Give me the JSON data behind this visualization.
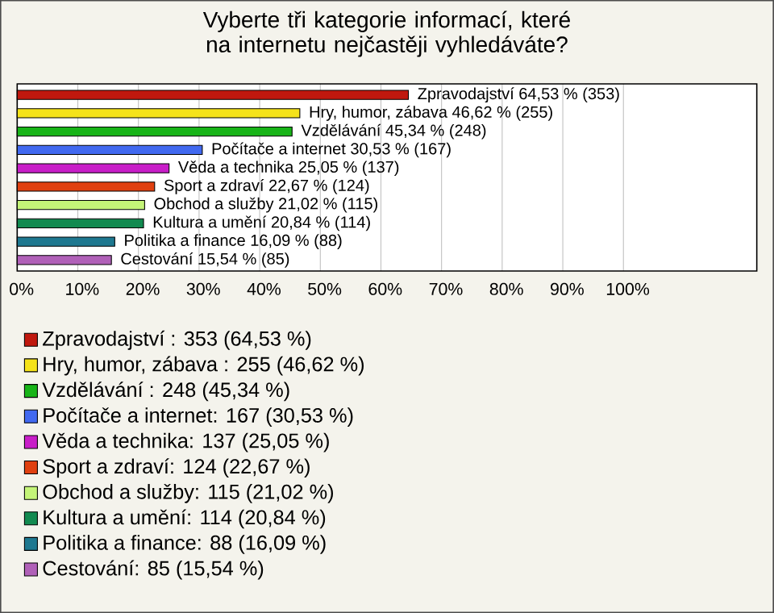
{
  "chart_data": {
    "type": "bar",
    "orientation": "horizontal",
    "title": "Vyberte tři kategorie informací, které na internetu nejčastěji vyhledáváte?",
    "categories": [
      null,
      null,
      null,
      null,
      null,
      null,
      null,
      null,
      null,
      null
    ],
    "series": [
      {
        "name": "Zpravodajství : 353 (64,53 %)",
        "color": "#c0180e",
        "values": [
          64.53,
          null,
          null,
          null,
          null,
          null,
          null,
          null,
          null,
          null
        ],
        "value_labels": [
          "Zpravodajství  64,53 % (353)",
          null,
          null,
          null,
          null,
          null,
          null,
          null,
          null,
          null
        ]
      },
      {
        "name": "Hry, humor, zábava : 255 (46,62 %)",
        "color": "#f5e31a",
        "values": [
          null,
          46.62,
          null,
          null,
          null,
          null,
          null,
          null,
          null,
          null
        ],
        "value_labels": [
          null,
          "Hry, humor, zábava  46,62 % (255)",
          null,
          null,
          null,
          null,
          null,
          null,
          null,
          null
        ]
      },
      {
        "name": "Vzdělávání : 248 (45,34 %)",
        "color": "#18b418",
        "values": [
          null,
          null,
          45.34,
          null,
          null,
          null,
          null,
          null,
          null,
          null
        ],
        "value_labels": [
          null,
          null,
          "Vzdělávání  45,34 % (248)",
          null,
          null,
          null,
          null,
          null,
          null,
          null
        ]
      },
      {
        "name": "Počítače a internet: 167 (30,53 %)",
        "color": "#4169f0",
        "values": [
          null,
          null,
          null,
          30.53,
          null,
          null,
          null,
          null,
          null,
          null
        ],
        "value_labels": [
          null,
          null,
          null,
          "Počítače a internet 30,53 % (167)",
          null,
          null,
          null,
          null,
          null,
          null
        ]
      },
      {
        "name": "Věda a technika: 137 (25,05 %)",
        "color": "#c81ec8",
        "values": [
          null,
          null,
          null,
          null,
          25.05,
          null,
          null,
          null,
          null,
          null
        ],
        "value_labels": [
          null,
          null,
          null,
          null,
          "Věda a technika 25,05 % (137)",
          null,
          null,
          null,
          null,
          null
        ]
      },
      {
        "name": "Sport a zdraví: 124 (22,67 %)",
        "color": "#e04010",
        "values": [
          null,
          null,
          null,
          null,
          null,
          22.67,
          null,
          null,
          null,
          null
        ],
        "value_labels": [
          null,
          null,
          null,
          null,
          null,
          "Sport a zdraví 22,67 % (124)",
          null,
          null,
          null,
          null
        ]
      },
      {
        "name": "Obchod a služby: 115 (21,02 %)",
        "color": "#c4f478",
        "values": [
          null,
          null,
          null,
          null,
          null,
          null,
          21.02,
          null,
          null,
          null
        ],
        "value_labels": [
          null,
          null,
          null,
          null,
          null,
          null,
          "Obchod a služby 21,02 % (115)",
          null,
          null,
          null
        ]
      },
      {
        "name": "Kultura a umění: 114 (20,84 %)",
        "color": "#128a50",
        "values": [
          null,
          null,
          null,
          null,
          null,
          null,
          null,
          20.84,
          null,
          null
        ],
        "value_labels": [
          null,
          null,
          null,
          null,
          null,
          null,
          null,
          "Kultura a umění 20,84 % (114)",
          null,
          null
        ]
      },
      {
        "name": "Politika a finance: 88 (16,09 %)",
        "color": "#1e7890",
        "values": [
          null,
          null,
          null,
          null,
          null,
          null,
          null,
          null,
          16.09,
          null
        ],
        "value_labels": [
          null,
          null,
          null,
          null,
          null,
          null,
          null,
          null,
          "Politika a finance 16,09 % (88)",
          null
        ]
      },
      {
        "name": "Cestování: 85 (15,54 %)",
        "color": "#b060b8",
        "values": [
          null,
          null,
          null,
          null,
          null,
          null,
          null,
          null,
          null,
          15.54
        ],
        "value_labels": [
          null,
          null,
          null,
          null,
          null,
          null,
          null,
          null,
          null,
          "Cestování 15,54 % (85)"
        ]
      }
    ],
    "xlim": [
      0,
      122
    ],
    "xticks": [
      {
        "value": 0,
        "label": "0%"
      },
      {
        "value": 10,
        "label": "10%"
      },
      {
        "value": 20,
        "label": "20%"
      },
      {
        "value": 30,
        "label": "30%"
      },
      {
        "value": 40,
        "label": "40%"
      },
      {
        "value": 50,
        "label": "50%"
      },
      {
        "value": 60,
        "label": "60%"
      },
      {
        "value": 70,
        "label": "70%"
      },
      {
        "value": 80,
        "label": "80%"
      },
      {
        "value": 90,
        "label": "90%"
      },
      {
        "value": 100,
        "label": "100%"
      }
    ],
    "grid": "x",
    "legend": "bottom",
    "tick_labels": "x"
  }
}
